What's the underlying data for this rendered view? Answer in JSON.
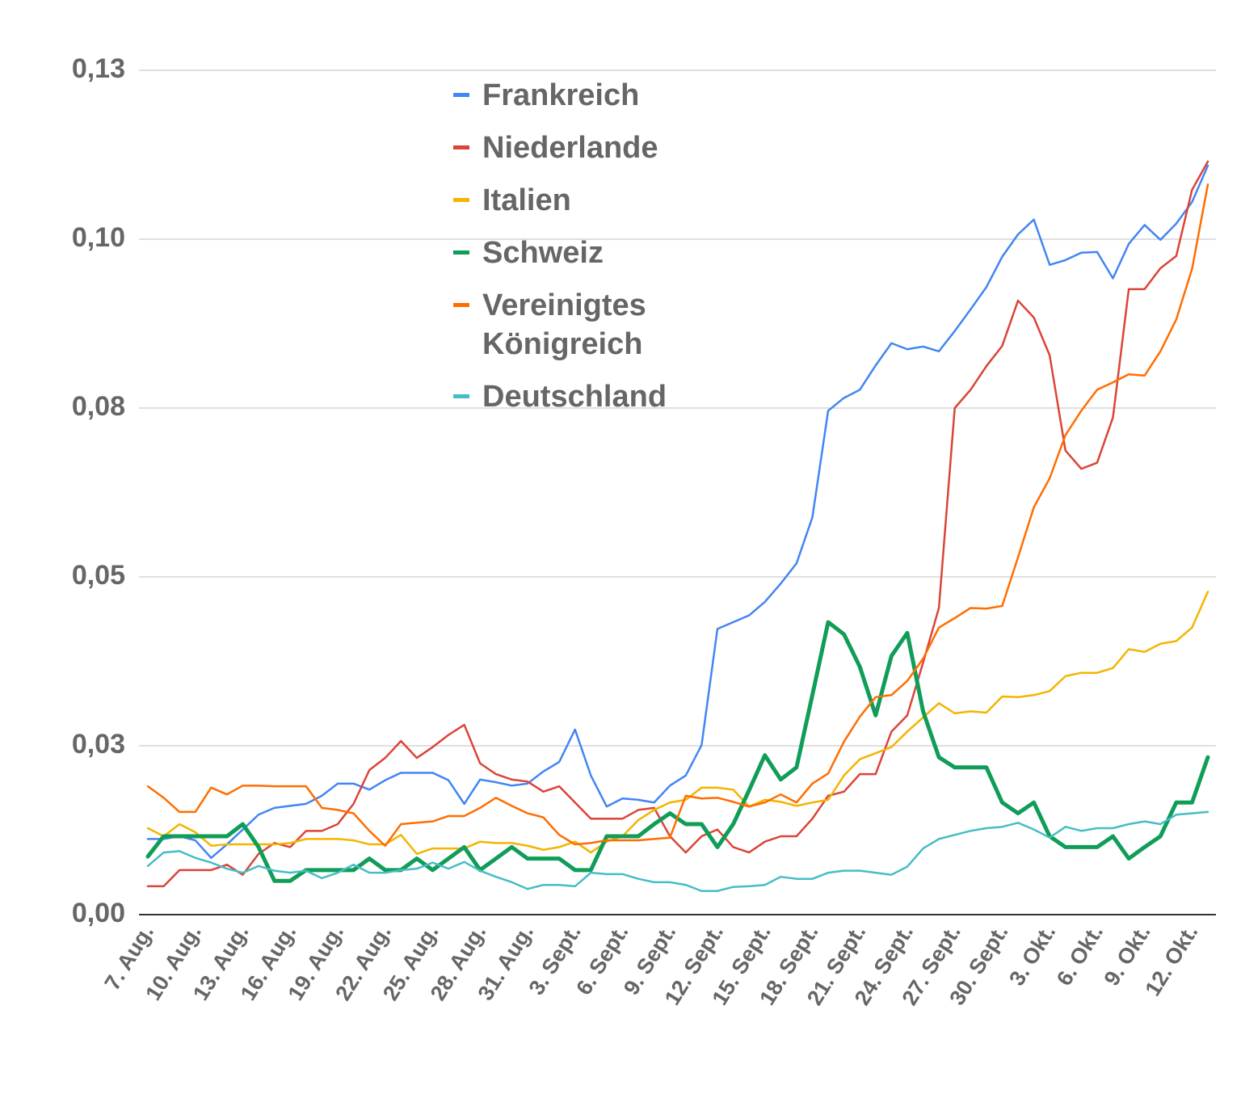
{
  "chart_data": {
    "type": "line",
    "categories": [
      "7. Aug.",
      null,
      null,
      "10. Aug.",
      null,
      null,
      "13. Aug.",
      null,
      null,
      "16. Aug.",
      null,
      null,
      "19. Aug.",
      null,
      null,
      "22. Aug.",
      null,
      null,
      "25. Aug.",
      null,
      null,
      "28. Aug.",
      null,
      null,
      "31. Aug.",
      null,
      null,
      "3. Sept.",
      null,
      null,
      "6. Sept.",
      null,
      null,
      "9. Sept.",
      null,
      null,
      "12. Sept.",
      null,
      null,
      "15. Sept.",
      null,
      null,
      "18. Sept.",
      null,
      null,
      "21. Sept.",
      null,
      null,
      "24. Sept.",
      null,
      null,
      "27. Sept.",
      null,
      null,
      "30. Sept.",
      null,
      null,
      "3. Okt.",
      null,
      null,
      "6. Okt.",
      null,
      null,
      "9. Okt.",
      null,
      null,
      "12. Okt.",
      null
    ],
    "ylim": [
      0,
      0.125
    ],
    "yticks": [
      {
        "value": 0,
        "label": "0,00"
      },
      {
        "value": 0.025,
        "label": "0,03"
      },
      {
        "value": 0.05,
        "label": "0,05"
      },
      {
        "value": 0.075,
        "label": "0,08"
      },
      {
        "value": 0.1,
        "label": "0,10"
      },
      {
        "value": 0.125,
        "label": "0,13"
      }
    ],
    "grid": true,
    "legend": "top",
    "series": [
      {
        "name": "Frankreich",
        "color": "#4285f4",
        "line_width": 2.5,
        "values": [
          0.0112,
          0.0112,
          0.0116,
          0.011,
          0.0084,
          0.0104,
          0.0126,
          0.0148,
          0.0158,
          0.0161,
          0.0164,
          0.0176,
          0.0194,
          0.0194,
          0.0185,
          0.0199,
          0.021,
          0.021,
          0.021,
          0.0199,
          0.0164,
          0.02,
          0.0196,
          0.0191,
          0.0194,
          0.0212,
          0.0226,
          0.0274,
          0.0206,
          0.016,
          0.0172,
          0.017,
          0.0166,
          0.0191,
          0.0206,
          0.0251,
          0.0423,
          0.0433,
          0.0443,
          0.0463,
          0.049,
          0.052,
          0.0588,
          0.0746,
          0.0765,
          0.0777,
          0.0813,
          0.0846,
          0.0837,
          0.0841,
          0.0834,
          0.0864,
          0.0896,
          0.0929,
          0.0974,
          0.1007,
          0.1029,
          0.0962,
          0.0969,
          0.098,
          0.0981,
          0.0942,
          0.0993,
          0.1021,
          0.0999,
          0.1023,
          0.1055,
          0.1109
        ]
      },
      {
        "name": "Niederlande",
        "color": "#db4437",
        "line_width": 2.5,
        "values": [
          0.0042,
          0.0042,
          0.0066,
          0.0066,
          0.0066,
          0.0074,
          0.0059,
          0.009,
          0.0106,
          0.01,
          0.0124,
          0.0124,
          0.0134,
          0.0164,
          0.0214,
          0.0232,
          0.0257,
          0.0232,
          0.0248,
          0.0266,
          0.0281,
          0.0224,
          0.0208,
          0.02,
          0.0197,
          0.0182,
          0.019,
          0.0166,
          0.0142,
          0.0142,
          0.0142,
          0.0155,
          0.0158,
          0.0116,
          0.0092,
          0.0116,
          0.0126,
          0.01,
          0.0092,
          0.0108,
          0.0116,
          0.0116,
          0.0142,
          0.0176,
          0.0182,
          0.0208,
          0.0208,
          0.0271,
          0.0295,
          0.0373,
          0.0454,
          0.075,
          0.0777,
          0.0812,
          0.0842,
          0.0909,
          0.0884,
          0.0828,
          0.0687,
          0.066,
          0.0669,
          0.0736,
          0.0926,
          0.0926,
          0.0957,
          0.0975,
          0.1073,
          0.1115
        ]
      },
      {
        "name": "Italien",
        "color": "#f4b400",
        "line_width": 2.5,
        "values": [
          0.0128,
          0.0116,
          0.0134,
          0.0122,
          0.0102,
          0.0104,
          0.0104,
          0.0104,
          0.0104,
          0.0106,
          0.0112,
          0.0112,
          0.0112,
          0.011,
          0.0104,
          0.0104,
          0.0118,
          0.009,
          0.0098,
          0.0098,
          0.0098,
          0.0108,
          0.0106,
          0.0106,
          0.0102,
          0.0096,
          0.01,
          0.0108,
          0.0092,
          0.0108,
          0.0116,
          0.014,
          0.0155,
          0.0166,
          0.017,
          0.0188,
          0.0188,
          0.0185,
          0.016,
          0.017,
          0.0167,
          0.0161,
          0.0166,
          0.017,
          0.0206,
          0.023,
          0.0239,
          0.0248,
          0.0271,
          0.0292,
          0.0313,
          0.0298,
          0.0301,
          0.0299,
          0.0323,
          0.0322,
          0.0325,
          0.0331,
          0.0353,
          0.0358,
          0.0358,
          0.0365,
          0.0393,
          0.0389,
          0.0401,
          0.0405,
          0.0425,
          0.0478
        ]
      },
      {
        "name": "Schweiz",
        "color": "#0f9d58",
        "line_width": 5,
        "values": [
          0.0086,
          0.0116,
          0.0116,
          0.0116,
          0.0116,
          0.0116,
          0.0134,
          0.01,
          0.005,
          0.005,
          0.0066,
          0.0066,
          0.0066,
          0.0066,
          0.0083,
          0.0066,
          0.0066,
          0.0083,
          0.0066,
          0.0083,
          0.01,
          0.0066,
          0.0083,
          0.01,
          0.0083,
          0.0083,
          0.0083,
          0.0066,
          0.0066,
          0.0116,
          0.0116,
          0.0116,
          0.0134,
          0.015,
          0.0134,
          0.0134,
          0.01,
          0.0134,
          0.0184,
          0.0236,
          0.02,
          0.0218,
          0.0325,
          0.0433,
          0.0415,
          0.0367,
          0.0295,
          0.0383,
          0.0417,
          0.0301,
          0.0233,
          0.0218,
          0.0218,
          0.0218,
          0.0166,
          0.015,
          0.0166,
          0.0116,
          0.01,
          0.01,
          0.01,
          0.0116,
          0.0083,
          0.01,
          0.0116,
          0.0166,
          0.0166,
          0.0233
        ]
      },
      {
        "name": "Vereinigtes Königreich",
        "color": "#ff6d01",
        "line_width": 2.5,
        "values": [
          0.019,
          0.0173,
          0.0152,
          0.0152,
          0.0188,
          0.0178,
          0.0191,
          0.0191,
          0.019,
          0.019,
          0.019,
          0.0158,
          0.0155,
          0.015,
          0.0124,
          0.0102,
          0.0134,
          0.0136,
          0.0138,
          0.0146,
          0.0146,
          0.0158,
          0.0173,
          0.0161,
          0.015,
          0.0144,
          0.0118,
          0.0104,
          0.0106,
          0.011,
          0.011,
          0.011,
          0.0112,
          0.0114,
          0.0176,
          0.0172,
          0.0173,
          0.0167,
          0.016,
          0.0166,
          0.0178,
          0.0166,
          0.0194,
          0.0209,
          0.0256,
          0.0293,
          0.0322,
          0.0325,
          0.0346,
          0.0379,
          0.0425,
          0.0439,
          0.0454,
          0.0453,
          0.0457,
          0.0529,
          0.0603,
          0.0646,
          0.071,
          0.0746,
          0.0777,
          0.0788,
          0.08,
          0.0798,
          0.0834,
          0.0881,
          0.0956,
          0.1081
        ]
      },
      {
        "name": "Deutschland",
        "color": "#46bdc6",
        "line_width": 2.5,
        "values": [
          0.0072,
          0.0092,
          0.0094,
          0.0084,
          0.0077,
          0.0068,
          0.0062,
          0.0072,
          0.0065,
          0.0062,
          0.0065,
          0.0054,
          0.0062,
          0.0074,
          0.0062,
          0.0062,
          0.0066,
          0.0068,
          0.0077,
          0.0068,
          0.0078,
          0.0065,
          0.0056,
          0.0048,
          0.0038,
          0.0044,
          0.0044,
          0.0042,
          0.0062,
          0.006,
          0.006,
          0.0053,
          0.0048,
          0.0048,
          0.0044,
          0.0035,
          0.0035,
          0.0041,
          0.0042,
          0.0044,
          0.0056,
          0.0053,
          0.0053,
          0.0062,
          0.0065,
          0.0065,
          0.0062,
          0.0059,
          0.0071,
          0.0098,
          0.0112,
          0.0118,
          0.0124,
          0.0128,
          0.013,
          0.0136,
          0.0126,
          0.0114,
          0.013,
          0.0124,
          0.0128,
          0.0128,
          0.0134,
          0.0138,
          0.0134,
          0.0148,
          0.015,
          0.0152
        ]
      }
    ]
  }
}
